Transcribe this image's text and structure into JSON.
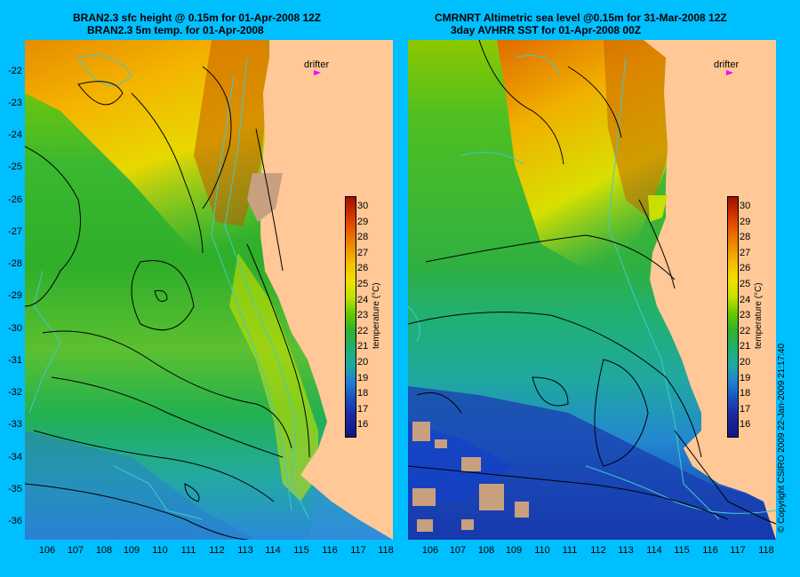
{
  "left_panel": {
    "title_line1": "BRAN2.3 sfc height @ 0.15m for 01-Apr-2008 12Z",
    "title_line2": "BRAN2.3 5m temp. for 01-Apr-2008",
    "drifter_label": "drifter"
  },
  "right_panel": {
    "title_line1": "CMRNRT Altimetric sea level  @0.15m  for 31-Mar-2008 12Z",
    "title_line2": "3day AVHRR SST for 01-Apr-2008 00Z",
    "drifter_label": "drifter"
  },
  "colorbar": {
    "label": "temperature (°C)",
    "ticks": [
      "30",
      "29",
      "28",
      "27",
      "26",
      "25",
      "24",
      "23",
      "22",
      "21",
      "20",
      "19",
      "18",
      "17",
      "16"
    ]
  },
  "axes": {
    "lat_ticks": [
      "-22",
      "-23",
      "-24",
      "-25",
      "-26",
      "-27",
      "-28",
      "-29",
      "-30",
      "-31",
      "-32",
      "-33",
      "-34",
      "-35",
      "-36"
    ],
    "lon_ticks": [
      "106",
      "107",
      "108",
      "109",
      "110",
      "111",
      "112",
      "113",
      "114",
      "115",
      "116",
      "117",
      "118"
    ]
  },
  "copyright": "© Copyright CSIRO 2009   22-Jan-2009 21:17:40",
  "colors": {
    "background": "#00bfff",
    "land": "#ffc896",
    "contour": "#000000",
    "bathymetry": "#40c8d0",
    "drifter": "#ff00ff"
  }
}
